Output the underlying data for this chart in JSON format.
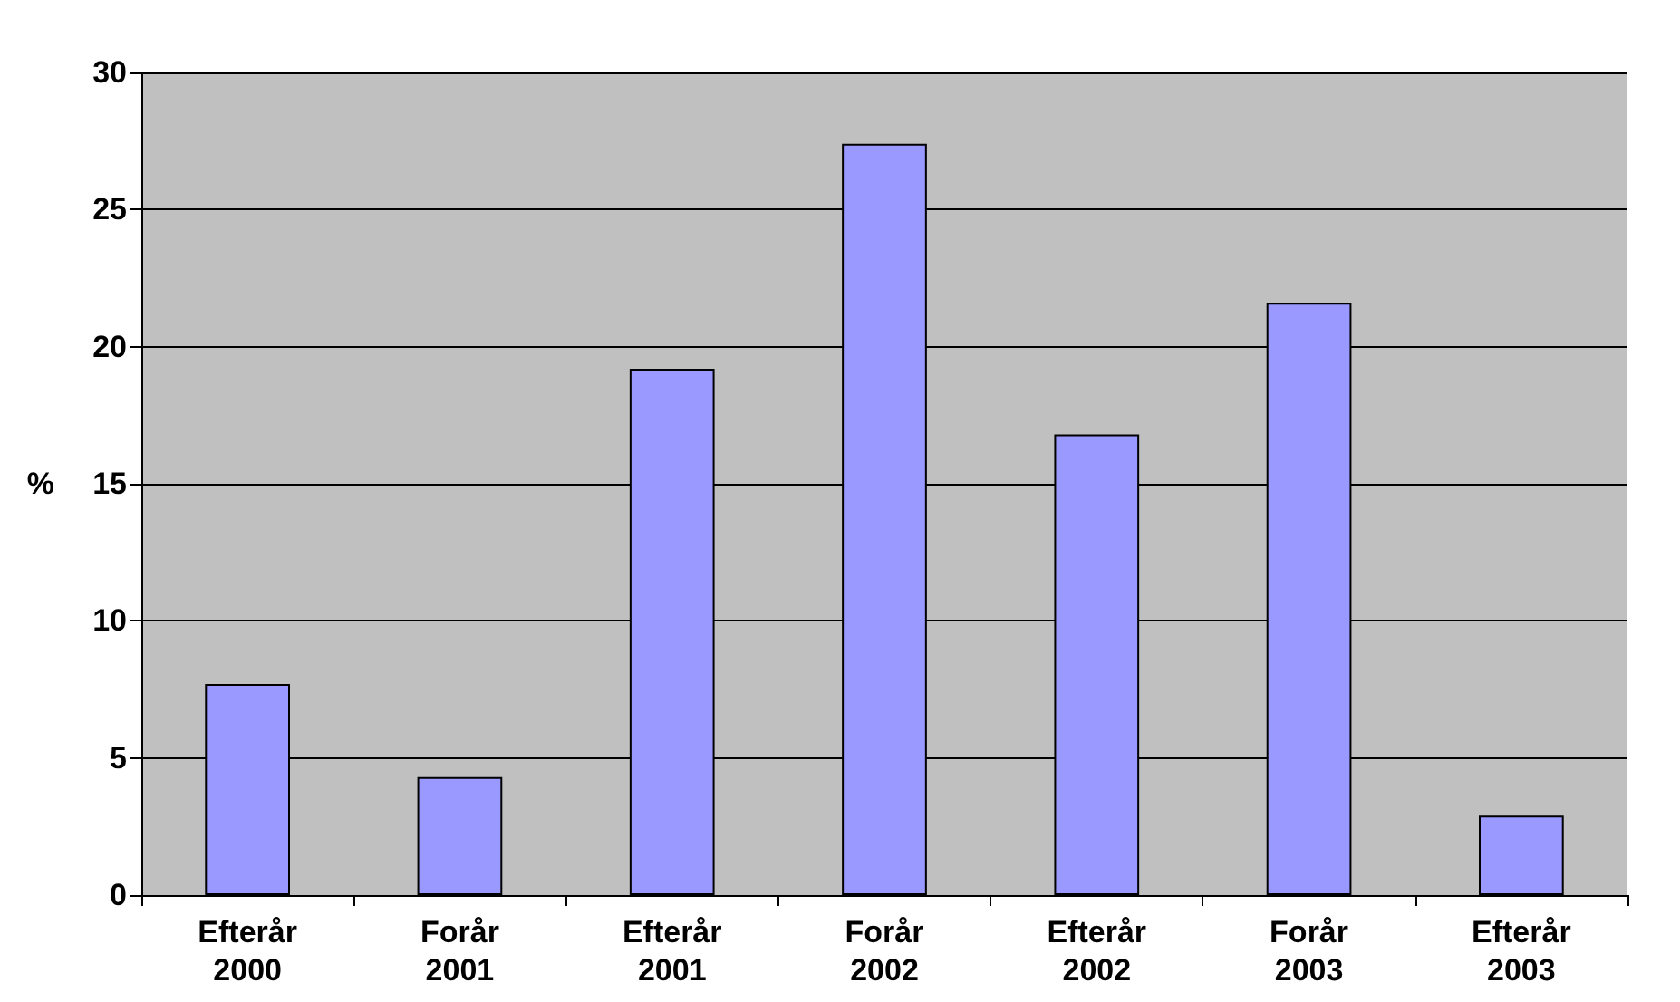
{
  "chart_data": {
    "type": "bar",
    "categories": [
      "Efterår 2000",
      "Forår 2001",
      "Efterår 2001",
      "Forår 2002",
      "Efterår 2002",
      "Forår 2003",
      "Efterår 2003"
    ],
    "values": [
      7.7,
      4.3,
      19.2,
      27.4,
      16.8,
      21.6,
      2.9
    ],
    "color": "#9999ff",
    "ylabel": "%",
    "ylim": [
      0,
      30
    ],
    "yticks": [
      0,
      5,
      10,
      15,
      20,
      25,
      30
    ],
    "grid": "y"
  }
}
